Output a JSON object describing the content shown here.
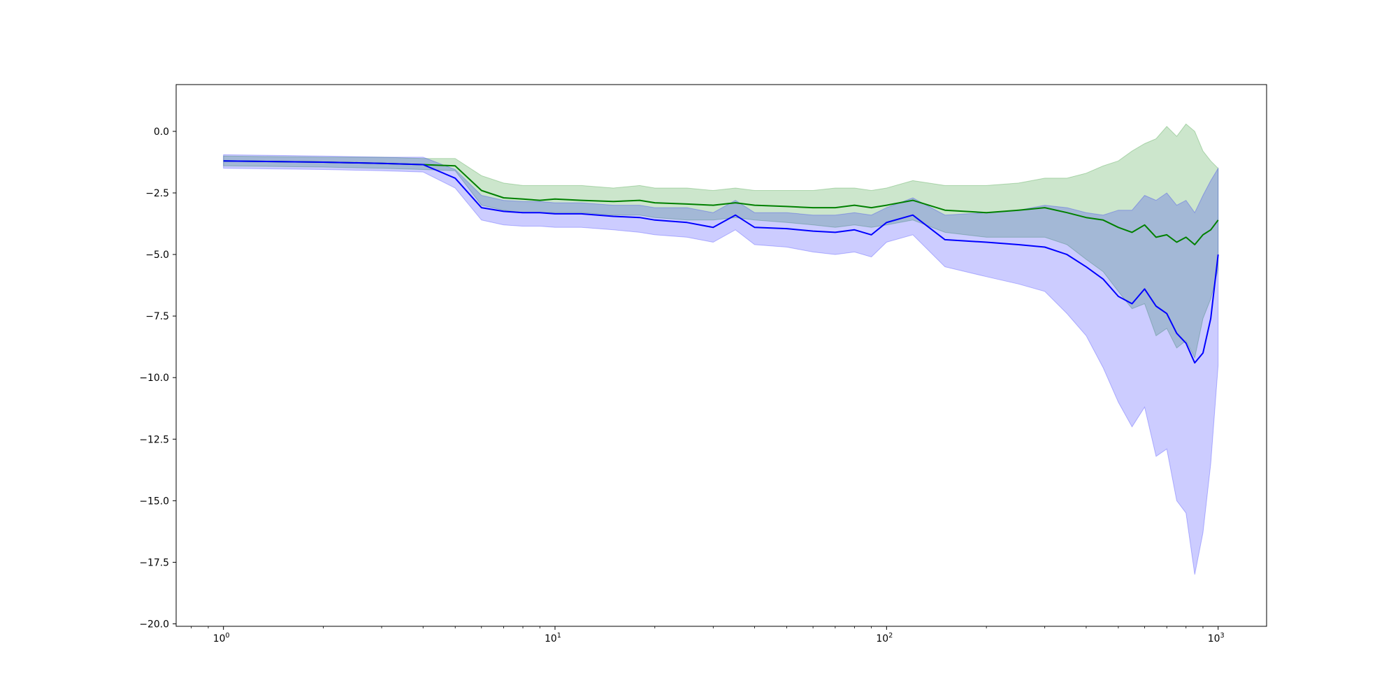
{
  "chart_data": {
    "type": "line",
    "title": "",
    "xlabel": "",
    "ylabel": "",
    "xscale": "log",
    "xlim": [
      0.72,
      1400
    ],
    "ylim": [
      -20.1,
      1.9
    ],
    "grid": false,
    "legend": "none",
    "x_ticks": [
      {
        "value": 1,
        "base": "10",
        "exp": "0"
      },
      {
        "value": 10,
        "base": "10",
        "exp": "1"
      },
      {
        "value": 100,
        "base": "10",
        "exp": "2"
      },
      {
        "value": 1000,
        "base": "10",
        "exp": "3"
      }
    ],
    "y_ticks": [
      {
        "value": 0,
        "label": "0.0"
      },
      {
        "value": -2.5,
        "label": "−2.5"
      },
      {
        "value": -5,
        "label": "−5.0"
      },
      {
        "value": -7.5,
        "label": "−7.5"
      },
      {
        "value": -10,
        "label": "−10.0"
      },
      {
        "value": -12.5,
        "label": "−12.5"
      },
      {
        "value": -15,
        "label": "−15.0"
      },
      {
        "value": -17.5,
        "label": "−17.5"
      },
      {
        "value": -20,
        "label": "−20.0"
      }
    ],
    "series": [
      {
        "color": "#008000",
        "band_color": "#008000",
        "band_opacity": 0.2,
        "x": [
          1,
          2,
          3,
          4,
          5,
          6,
          7,
          8,
          9,
          10,
          12,
          15,
          18,
          20,
          25,
          30,
          35,
          40,
          50,
          60,
          70,
          80,
          90,
          100,
          120,
          150,
          200,
          250,
          300,
          350,
          400,
          450,
          500,
          550,
          600,
          650,
          700,
          750,
          800,
          850,
          900,
          950,
          1000
        ],
        "mean": [
          -1.2,
          -1.25,
          -1.3,
          -1.35,
          -1.4,
          -2.4,
          -2.7,
          -2.75,
          -2.8,
          -2.75,
          -2.8,
          -2.85,
          -2.8,
          -2.9,
          -2.95,
          -3.0,
          -2.9,
          -3.0,
          -3.05,
          -3.1,
          -3.1,
          -3.0,
          -3.1,
          -3.0,
          -2.8,
          -3.2,
          -3.3,
          -3.2,
          -3.1,
          -3.3,
          -3.5,
          -3.6,
          -3.9,
          -4.1,
          -3.8,
          -4.3,
          -4.2,
          -4.5,
          -4.3,
          -4.6,
          -4.2,
          -4.0,
          -3.6
        ],
        "upper": [
          -1.0,
          -1.05,
          -1.05,
          -1.1,
          -1.1,
          -1.8,
          -2.1,
          -2.2,
          -2.2,
          -2.2,
          -2.2,
          -2.3,
          -2.2,
          -2.3,
          -2.3,
          -2.4,
          -2.3,
          -2.4,
          -2.4,
          -2.4,
          -2.3,
          -2.3,
          -2.4,
          -2.3,
          -2.0,
          -2.2,
          -2.2,
          -2.1,
          -1.9,
          -1.9,
          -1.7,
          -1.4,
          -1.2,
          -0.8,
          -0.5,
          -0.3,
          0.2,
          -0.2,
          0.3,
          0.0,
          -0.8,
          -1.2,
          -1.5
        ],
        "lower": [
          -1.4,
          -1.45,
          -1.5,
          -1.55,
          -1.6,
          -3.0,
          -3.2,
          -3.3,
          -3.3,
          -3.3,
          -3.3,
          -3.4,
          -3.4,
          -3.5,
          -3.6,
          -3.6,
          -3.5,
          -3.6,
          -3.7,
          -3.8,
          -3.9,
          -3.8,
          -3.9,
          -3.8,
          -3.6,
          -4.1,
          -4.3,
          -4.3,
          -4.3,
          -4.6,
          -5.2,
          -5.7,
          -6.5,
          -7.2,
          -7.0,
          -8.3,
          -8.0,
          -8.8,
          -8.5,
          -9.2,
          -7.6,
          -6.8,
          -5.6
        ]
      },
      {
        "color": "#0000ff",
        "band_color": "#0000ff",
        "band_opacity": 0.2,
        "x": [
          1,
          2,
          3,
          4,
          5,
          6,
          7,
          8,
          9,
          10,
          12,
          15,
          18,
          20,
          25,
          30,
          35,
          40,
          50,
          60,
          70,
          80,
          90,
          100,
          120,
          150,
          200,
          250,
          300,
          350,
          400,
          450,
          500,
          550,
          600,
          650,
          700,
          750,
          800,
          850,
          900,
          950,
          1000
        ],
        "mean": [
          -1.2,
          -1.25,
          -1.3,
          -1.35,
          -1.9,
          -3.1,
          -3.25,
          -3.3,
          -3.3,
          -3.35,
          -3.35,
          -3.45,
          -3.5,
          -3.6,
          -3.7,
          -3.9,
          -3.4,
          -3.9,
          -3.95,
          -4.05,
          -4.1,
          -4.0,
          -4.2,
          -3.7,
          -3.4,
          -4.4,
          -4.5,
          -4.6,
          -4.7,
          -5.0,
          -5.5,
          -6.0,
          -6.7,
          -7.0,
          -6.4,
          -7.1,
          -7.4,
          -8.2,
          -8.6,
          -9.4,
          -9.0,
          -7.6,
          -5.0
        ],
        "upper": [
          -0.95,
          -1.0,
          -1.05,
          -1.05,
          -1.55,
          -2.6,
          -2.8,
          -2.85,
          -2.85,
          -2.9,
          -2.9,
          -3.0,
          -3.0,
          -3.1,
          -3.1,
          -3.3,
          -2.8,
          -3.3,
          -3.3,
          -3.4,
          -3.4,
          -3.3,
          -3.4,
          -3.1,
          -2.7,
          -3.4,
          -3.3,
          -3.2,
          -3.0,
          -3.1,
          -3.3,
          -3.4,
          -3.2,
          -3.2,
          -2.6,
          -2.8,
          -2.5,
          -3.0,
          -2.8,
          -3.3,
          -2.6,
          -2.0,
          -1.5
        ],
        "lower": [
          -1.5,
          -1.55,
          -1.6,
          -1.65,
          -2.3,
          -3.6,
          -3.8,
          -3.85,
          -3.85,
          -3.9,
          -3.9,
          -4.0,
          -4.1,
          -4.2,
          -4.3,
          -4.5,
          -4.0,
          -4.6,
          -4.7,
          -4.9,
          -5.0,
          -4.9,
          -5.1,
          -4.5,
          -4.2,
          -5.5,
          -5.9,
          -6.2,
          -6.5,
          -7.4,
          -8.3,
          -9.6,
          -11.0,
          -12.0,
          -11.2,
          -13.2,
          -12.9,
          -15.0,
          -15.5,
          -18.0,
          -16.3,
          -13.5,
          -9.5
        ]
      }
    ]
  }
}
